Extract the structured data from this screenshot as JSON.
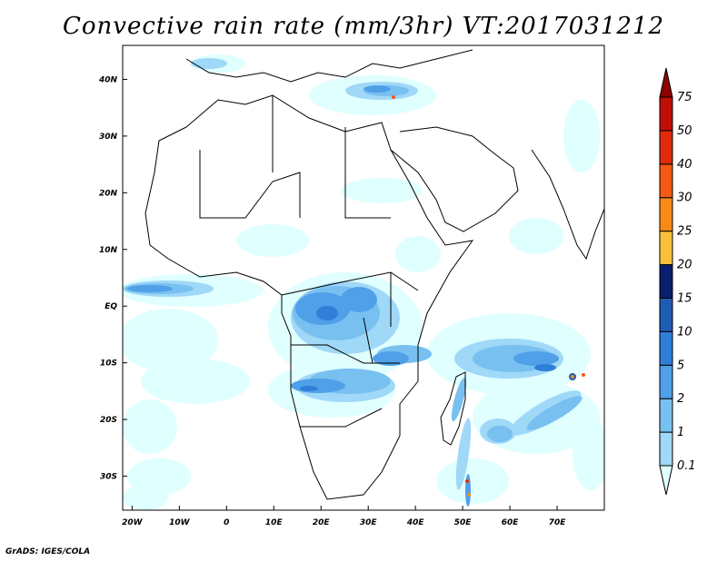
{
  "title": "Convective rain rate (mm/3hr) VT:2017031212",
  "credit": "GrADS: IGES/COLA",
  "map": {
    "region": "Africa and Arabian Peninsula",
    "lon_range": [
      -22,
      80
    ],
    "lat_range": [
      -36,
      46
    ],
    "lon_ticks": [
      "20W",
      "10W",
      "0",
      "10E",
      "20E",
      "30E",
      "40E",
      "50E",
      "60E",
      "70E"
    ],
    "lat_ticks": [
      "40N",
      "30N",
      "20N",
      "10N",
      "EQ",
      "10S",
      "20S",
      "30S"
    ]
  },
  "colorbar": {
    "levels": [
      "0.1",
      "1",
      "2",
      "5",
      "10",
      "15",
      "20",
      "25",
      "30",
      "40",
      "50",
      "75"
    ],
    "colors": [
      "#e0ffff",
      "#a0d8f8",
      "#78c0f0",
      "#4fa0e8",
      "#2f7fd8",
      "#1e5cb3",
      "#0b1e6e",
      "#fbbf3c",
      "#f98a16",
      "#f45a13",
      "#e02b0c",
      "#c01006",
      "#8f0000"
    ]
  }
}
